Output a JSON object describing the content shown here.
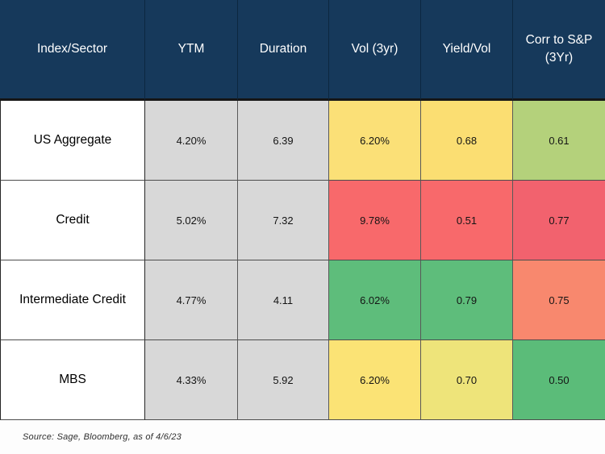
{
  "colors": {
    "header_bg": "#16395B",
    "header_text": "#FFFFFF",
    "neutral_gray": "#D8D8D8",
    "heat_red": "#F8696B",
    "heat_rose": "#F2626E",
    "heat_salmon": "#F8886E",
    "heat_yellow": "#FBE077",
    "heat_yellow_warm": "#FBDE72",
    "heat_yellow_green": "#EEE47A",
    "heat_green": "#5EBD7B",
    "heat_olive": "#B4D17B"
  },
  "table": {
    "columns": [
      "Index/Sector",
      "YTM",
      "Duration",
      "Vol (3yr)",
      "Yield/Vol",
      "Corr to S&P (3Yr)"
    ],
    "rows": [
      {
        "label": "US Aggregate",
        "cells": [
          {
            "text": "4.20%",
            "bg": "#D8D8D8"
          },
          {
            "text": "6.39",
            "bg": "#D8D8D8"
          },
          {
            "text": "6.20%",
            "bg": "#FBE077"
          },
          {
            "text": "0.68",
            "bg": "#FBDE72"
          },
          {
            "text": "0.61",
            "bg": "#B4D17B"
          }
        ]
      },
      {
        "label": "Credit",
        "cells": [
          {
            "text": "5.02%",
            "bg": "#D8D8D8"
          },
          {
            "text": "7.32",
            "bg": "#D8D8D8"
          },
          {
            "text": "9.78%",
            "bg": "#F8696B"
          },
          {
            "text": "0.51",
            "bg": "#F8696B"
          },
          {
            "text": "0.77",
            "bg": "#F2626E"
          }
        ]
      },
      {
        "label": "Intermediate Credit",
        "cells": [
          {
            "text": "4.77%",
            "bg": "#D8D8D8"
          },
          {
            "text": "4.11",
            "bg": "#D8D8D8"
          },
          {
            "text": "6.02%",
            "bg": "#5EBD7B"
          },
          {
            "text": "0.79",
            "bg": "#5EBD7B"
          },
          {
            "text": "0.75",
            "bg": "#F8886E"
          }
        ]
      },
      {
        "label": "MBS",
        "cells": [
          {
            "text": "4.33%",
            "bg": "#D8D8D8"
          },
          {
            "text": "5.92",
            "bg": "#D8D8D8"
          },
          {
            "text": "6.20%",
            "bg": "#FBE375"
          },
          {
            "text": "0.70",
            "bg": "#EEE47A"
          },
          {
            "text": "0.50",
            "bg": "#5BBC79"
          }
        ]
      }
    ]
  },
  "source_note": "Source: Sage, Bloomberg, as of 4/6/23",
  "chart_data": {
    "type": "table",
    "title": "",
    "columns": [
      "Index/Sector",
      "YTM",
      "Duration",
      "Vol (3yr)",
      "Yield/Vol",
      "Corr to S&P (3Yr)"
    ],
    "rows": [
      {
        "index_sector": "US Aggregate",
        "ytm": "4.20%",
        "duration": 6.39,
        "vol_3yr": "6.20%",
        "yield_vol": 0.68,
        "corr_to_sp_3yr": 0.61
      },
      {
        "index_sector": "Credit",
        "ytm": "5.02%",
        "duration": 7.32,
        "vol_3yr": "9.78%",
        "yield_vol": 0.51,
        "corr_to_sp_3yr": 0.77
      },
      {
        "index_sector": "Intermediate Credit",
        "ytm": "4.77%",
        "duration": 4.11,
        "vol_3yr": "6.02%",
        "yield_vol": 0.79,
        "corr_to_sp_3yr": 0.75
      },
      {
        "index_sector": "MBS",
        "ytm": "4.33%",
        "duration": 5.92,
        "vol_3yr": "6.20%",
        "yield_vol": 0.7,
        "corr_to_sp_3yr": 0.5
      }
    ],
    "layout_hints": "Heatmap coloring on Vol (3yr), Yield/Vol and Corr to S&P columns: green = favorable, yellow = mid, red = unfavorable; YTM and Duration columns neutral gray; row label column white",
    "source": "Source: Sage, Bloomberg, as of 4/6/23"
  }
}
